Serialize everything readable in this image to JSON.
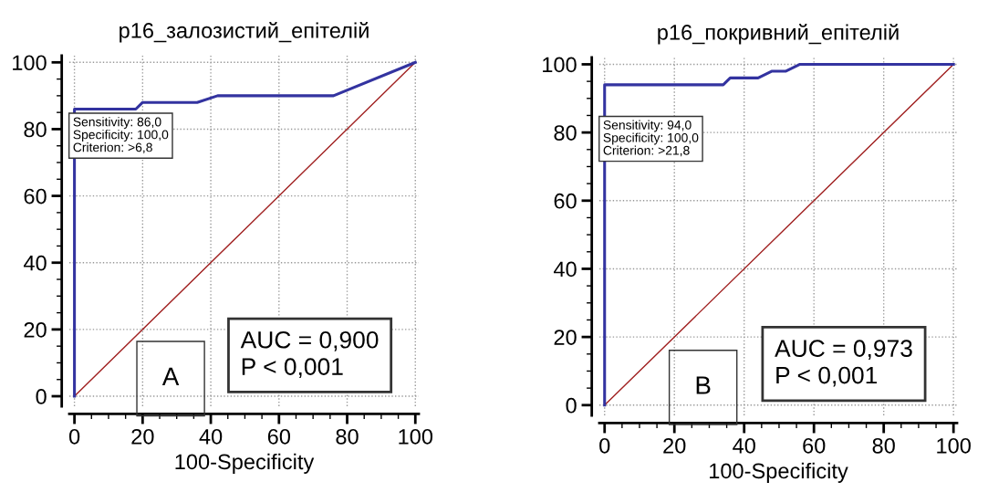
{
  "chart_data": [
    {
      "type": "line",
      "title": "p16_залозистий_епітелій",
      "xlabel": "100-Specificity",
      "xlim": [
        -1.5,
        101
      ],
      "ylim": [
        -3,
        102
      ],
      "xticks": [
        0,
        20,
        40,
        60,
        80,
        100
      ],
      "yticks": [
        0,
        20,
        40,
        60,
        80,
        100
      ],
      "grid": true,
      "marker": "none",
      "line_style": "solid",
      "series": [
        {
          "color": "#3333a0",
          "x": [
            0,
            0,
            18,
            20,
            36,
            42,
            76,
            100
          ],
          "values": [
            0,
            86,
            86,
            88,
            88,
            90,
            90,
            100
          ]
        },
        {
          "color": "#a02020",
          "x": [
            0,
            100
          ],
          "values": [
            0,
            100
          ]
        }
      ],
      "annotations": [
        "Sensitivity: 86,0\nSpecificity: 100,0\nCriterion: >6,8",
        "AUC = 0,900\nP < 0,001",
        "A"
      ]
    },
    {
      "type": "line",
      "title": "p16_покривний_епітелій",
      "xlabel": "100-Specificity",
      "xlim": [
        -1.5,
        101
      ],
      "ylim": [
        -3,
        102
      ],
      "xticks": [
        0,
        20,
        40,
        60,
        80,
        100
      ],
      "yticks": [
        0,
        20,
        40,
        60,
        80,
        100
      ],
      "grid": true,
      "marker": "none",
      "line_style": "solid",
      "series": [
        {
          "color": "#3333a0",
          "x": [
            0,
            0,
            34,
            36,
            44,
            48,
            52,
            56,
            100
          ],
          "values": [
            0,
            94,
            94,
            96,
            96,
            98,
            98,
            100,
            100
          ]
        },
        {
          "color": "#a02020",
          "x": [
            0,
            100
          ],
          "values": [
            0,
            100
          ]
        }
      ],
      "annotations": [
        "Sensitivity: 94,0\nSpecificity: 100,0\nCriterion: >21,8",
        "AUC = 0,973\nP < 0,001",
        "B"
      ]
    }
  ]
}
